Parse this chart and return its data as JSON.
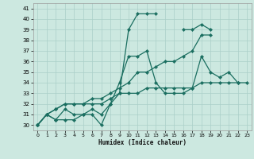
{
  "xlabel": "Humidex (Indice chaleur)",
  "xlim": [
    -0.5,
    23.5
  ],
  "ylim": [
    29.5,
    41.5
  ],
  "xticks": [
    0,
    1,
    2,
    3,
    4,
    5,
    6,
    7,
    8,
    9,
    10,
    11,
    12,
    13,
    14,
    15,
    16,
    17,
    18,
    19,
    20,
    21,
    22,
    23
  ],
  "yticks": [
    30,
    31,
    32,
    33,
    34,
    35,
    36,
    37,
    38,
    39,
    40,
    41
  ],
  "bg_color": "#cce8e0",
  "grid_color": "#aacfc8",
  "line_color": "#1a6e60",
  "line_width": 0.9,
  "marker": "D",
  "marker_size": 2.2,
  "series": [
    [
      30,
      31,
      30.5,
      30.5,
      30.5,
      31.0,
      31.0,
      30.0,
      32.0,
      34.0,
      36.5,
      36.5,
      37.0,
      34.0,
      33.0,
      33.0,
      33.0,
      33.5,
      36.5,
      35.0,
      34.5,
      35.0,
      34.0,
      null
    ],
    [
      30,
      31,
      30.5,
      31.5,
      31.0,
      31.0,
      31.5,
      31.0,
      32.0,
      33.0,
      39.0,
      40.5,
      40.5,
      40.5,
      null,
      null,
      39.0,
      39.0,
      39.5,
      39.0,
      null,
      null,
      null,
      null
    ],
    [
      30,
      31,
      31.5,
      32.0,
      32.0,
      32.0,
      32.0,
      32.0,
      32.5,
      33.0,
      33.0,
      33.0,
      33.5,
      33.5,
      33.5,
      33.5,
      33.5,
      33.5,
      34.0,
      34.0,
      34.0,
      34.0,
      34.0,
      34.0
    ],
    [
      30,
      31,
      31.5,
      32.0,
      32.0,
      32.0,
      32.5,
      32.5,
      33.0,
      33.5,
      34.0,
      35.0,
      35.0,
      35.5,
      36.0,
      36.0,
      36.5,
      37.0,
      38.5,
      38.5,
      null,
      null,
      null,
      null
    ]
  ]
}
